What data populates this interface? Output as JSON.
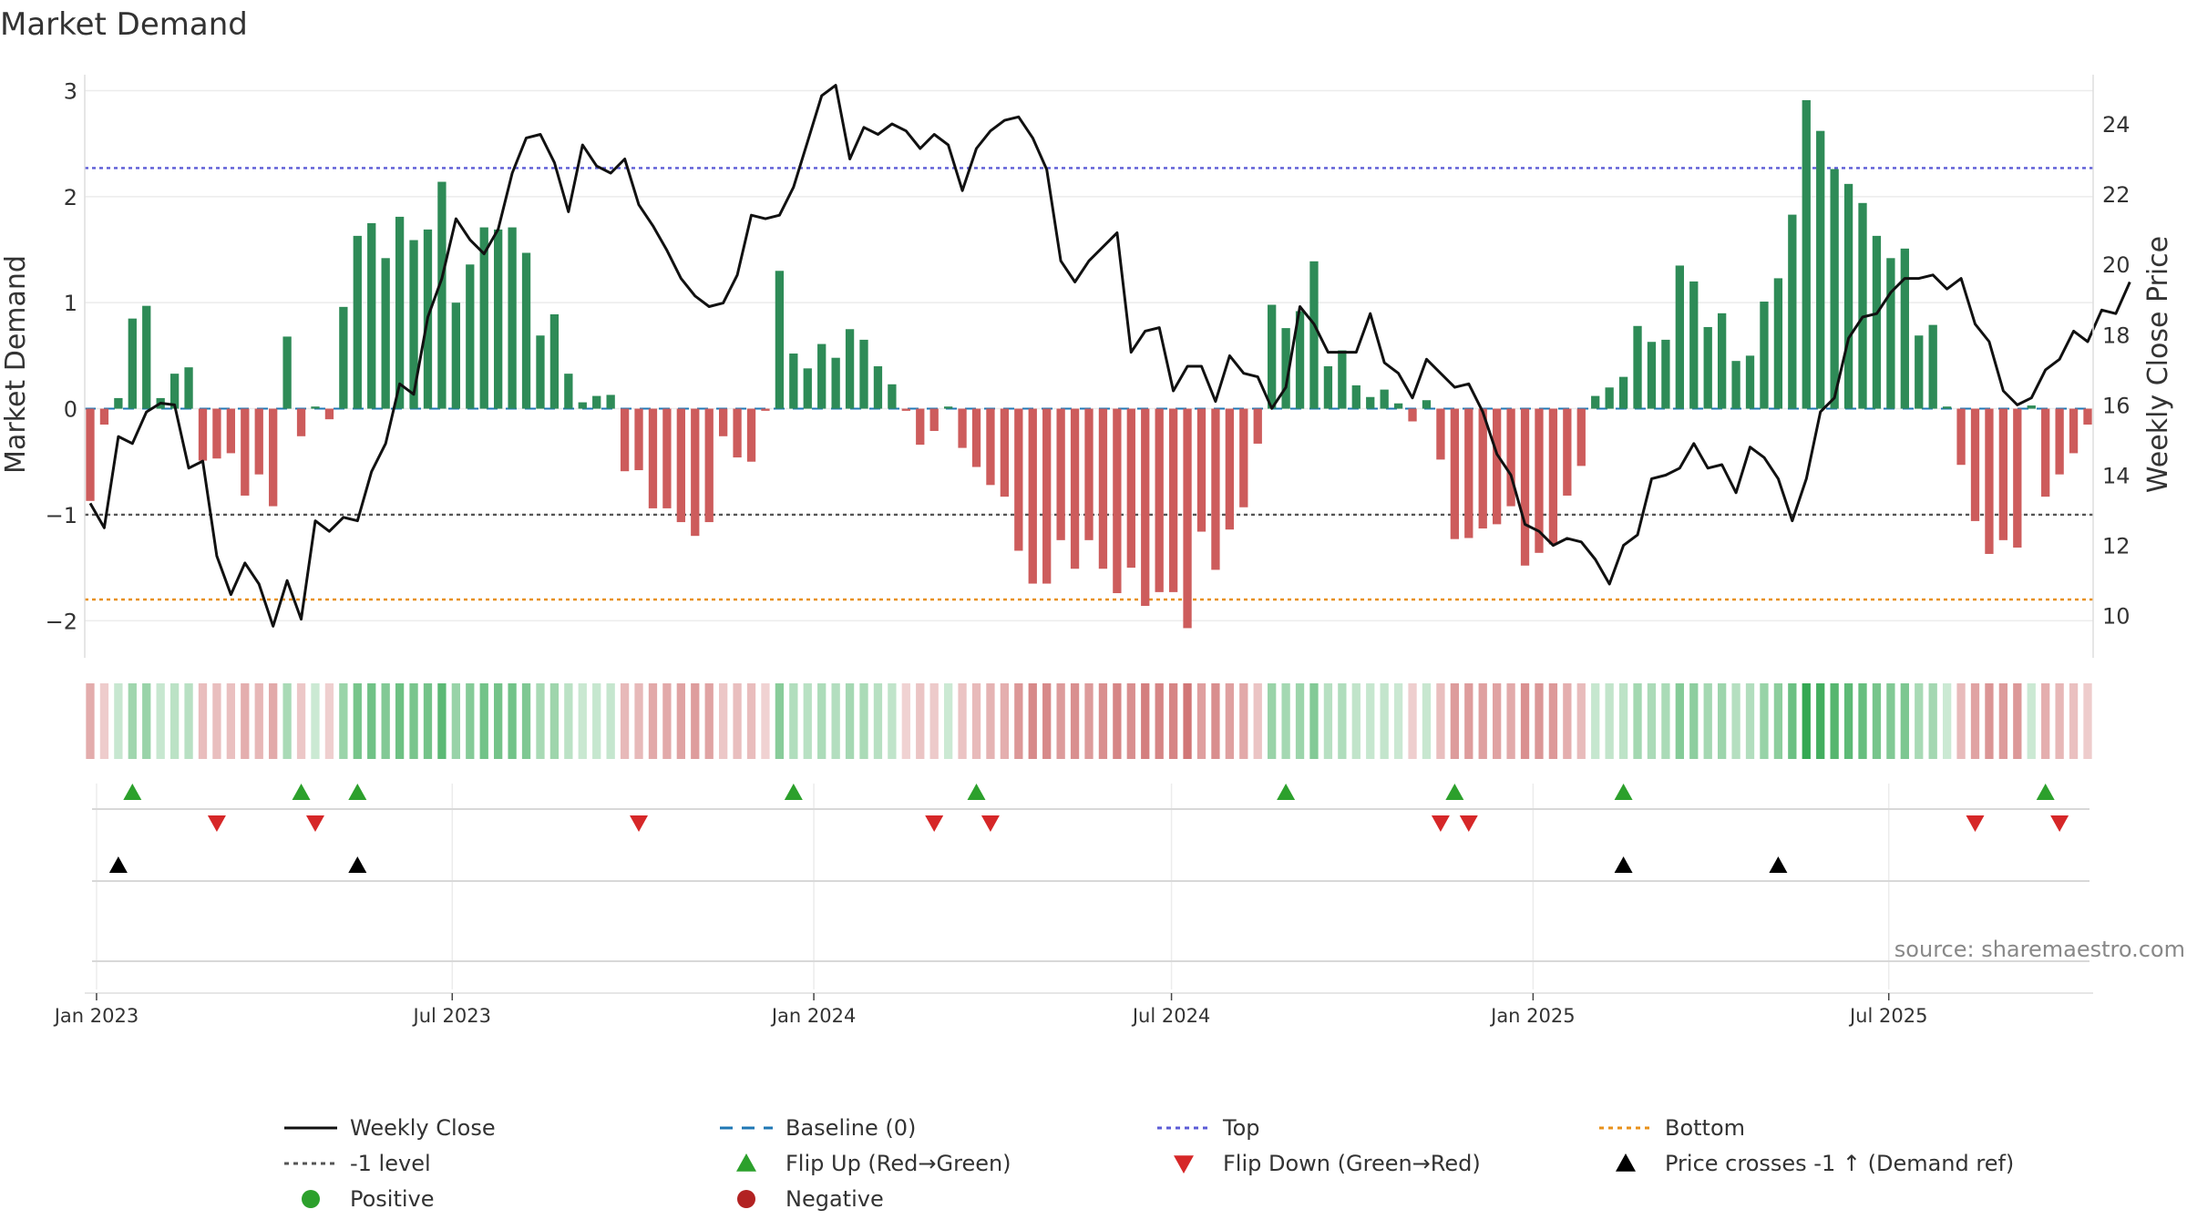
{
  "chart_data": {
    "type": "bar+line",
    "title": "Market Demand",
    "ylabel_left": "Market Demand",
    "ylabel_right": "Weekly Close Price",
    "ylim_left": [
      -2.35,
      3.15
    ],
    "ylim_right": [
      8.8,
      25.4
    ],
    "yticks_left": [
      -2,
      -1,
      0,
      1,
      2,
      3
    ],
    "yticks_right": [
      10,
      12,
      14,
      16,
      18,
      20,
      22,
      24
    ],
    "ytick_labels_left": [
      "−2",
      "−1",
      "0",
      "1",
      "2",
      "3"
    ],
    "x_start": "2022-12-26",
    "x_end": "2025-10-13",
    "xtick_dates": [
      "2023-01-01",
      "2023-07-01",
      "2024-01-01",
      "2024-07-01",
      "2025-01-01",
      "2025-07-01"
    ],
    "xtick_labels": [
      "Jan 2023",
      "Jul 2023",
      "Jan 2024",
      "Jul 2024",
      "Jan 2025",
      "Jul 2025"
    ],
    "reference_lines": {
      "top": 2.27,
      "bottom": -1.8,
      "minus_one": -1,
      "baseline": 0
    },
    "demand": [
      -0.87,
      -0.15,
      0.1,
      0.85,
      0.97,
      0.1,
      0.33,
      0.39,
      -0.49,
      -0.47,
      -0.42,
      -0.82,
      -0.62,
      -0.92,
      0.68,
      -0.26,
      0.02,
      -0.1,
      0.96,
      1.63,
      1.75,
      1.42,
      1.81,
      1.59,
      1.69,
      2.14,
      1.0,
      1.36,
      1.71,
      1.69,
      1.71,
      1.47,
      0.69,
      0.89,
      0.33,
      0.06,
      0.12,
      0.13,
      -0.59,
      -0.58,
      -0.94,
      -0.94,
      -1.07,
      -1.2,
      -1.07,
      -0.26,
      -0.46,
      -0.5,
      -0.02,
      1.3,
      0.52,
      0.38,
      0.61,
      0.48,
      0.75,
      0.65,
      0.4,
      0.23,
      -0.02,
      -0.34,
      -0.21,
      0.02,
      -0.37,
      -0.55,
      -0.72,
      -0.83,
      -1.34,
      -1.65,
      -1.65,
      -1.24,
      -1.51,
      -1.24,
      -1.51,
      -1.74,
      -1.5,
      -1.86,
      -1.73,
      -1.73,
      -2.07,
      -1.16,
      -1.52,
      -1.14,
      -0.93,
      -0.33,
      0.98,
      0.76,
      0.92,
      1.39,
      0.4,
      0.55,
      0.22,
      0.11,
      0.18,
      0.05,
      -0.12,
      0.08,
      -0.48,
      -1.23,
      -1.22,
      -1.13,
      -1.09,
      -0.92,
      -1.48,
      -1.36,
      -1.28,
      -0.82,
      -0.54,
      0.12,
      0.2,
      0.3,
      0.78,
      0.63,
      0.65,
      1.35,
      1.2,
      0.77,
      0.9,
      0.45,
      0.5,
      1.01,
      1.23,
      1.83,
      2.91,
      2.62,
      2.26,
      2.12,
      1.94,
      1.63,
      1.42,
      1.51,
      0.69,
      0.79,
      0.02,
      -0.53,
      -1.06,
      -1.37,
      -1.24,
      -1.31,
      0.03,
      -0.83,
      -0.62,
      -0.42,
      -0.15
    ],
    "close": [
      13.2,
      12.5,
      15.1,
      14.9,
      15.8,
      16.05,
      16.0,
      14.2,
      14.4,
      11.7,
      10.6,
      11.5,
      10.9,
      9.7,
      11.0,
      9.9,
      12.7,
      12.4,
      12.8,
      12.7,
      14.1,
      14.9,
      16.6,
      16.3,
      18.5,
      19.6,
      21.3,
      20.7,
      20.3,
      21.0,
      22.6,
      23.6,
      23.7,
      22.9,
      21.5,
      23.4,
      22.8,
      22.6,
      23.0,
      21.7,
      21.1,
      20.4,
      19.6,
      19.1,
      18.8,
      18.9,
      19.7,
      21.4,
      21.3,
      21.4,
      22.2,
      23.5,
      24.8,
      25.1,
      23.0,
      23.9,
      23.7,
      24.0,
      23.8,
      23.3,
      23.7,
      23.4,
      22.1,
      23.3,
      23.8,
      24.1,
      24.2,
      23.6,
      22.7,
      20.1,
      19.5,
      20.1,
      20.5,
      20.9,
      17.5,
      18.1,
      18.2,
      16.4,
      17.1,
      17.1,
      16.1,
      17.4,
      16.9,
      16.8,
      15.9,
      16.5,
      18.8,
      18.3,
      17.5,
      17.5,
      17.5,
      18.6,
      17.2,
      16.9,
      16.2,
      17.3,
      16.9,
      16.5,
      16.6,
      15.8,
      14.6,
      14.0,
      12.6,
      12.4,
      12.0,
      12.2,
      12.1,
      11.6,
      10.9,
      12.0,
      12.3,
      13.9,
      14.0,
      14.2,
      14.9,
      14.2,
      14.3,
      13.5,
      14.8,
      14.5,
      13.9,
      12.7,
      13.9,
      15.8,
      16.2,
      17.9,
      18.5,
      18.6,
      19.2,
      19.6,
      19.6,
      19.7,
      19.3,
      19.6,
      18.3,
      17.8,
      16.4,
      16.0,
      16.2,
      17.0,
      17.3,
      18.1,
      17.8,
      18.7,
      18.6,
      19.5
    ],
    "series": [
      {
        "name": "Weekly Close",
        "color": "#111111"
      },
      {
        "name": "Market Demand positive",
        "color": "#2e8b57"
      },
      {
        "name": "Market Demand negative",
        "color": "#cd5c5c"
      }
    ],
    "flip_up_indices": [
      3,
      15,
      19,
      50,
      63,
      85,
      97,
      109,
      139
    ],
    "flip_down_indices": [
      9,
      16,
      39,
      60,
      64,
      96,
      98,
      134,
      140
    ],
    "price_cross_indices": [
      2,
      19,
      109,
      120
    ],
    "legend": [
      {
        "label": "Weekly Close",
        "symbol": "line",
        "color": "#111111"
      },
      {
        "label": "Baseline (0)",
        "symbol": "dashed",
        "color": "#1f77b4"
      },
      {
        "label": "Top",
        "symbol": "dotted",
        "color": "#5b5bd6"
      },
      {
        "label": "Bottom",
        "symbol": "dotted",
        "color": "#e8901a"
      },
      {
        "label": "-1 level",
        "symbol": "dotted",
        "color": "#555555"
      },
      {
        "label": "Flip Up (Red→Green)",
        "symbol": "triangle-up",
        "color": "#2ca02c"
      },
      {
        "label": "Flip Down (Green→Red)",
        "symbol": "triangle-down",
        "color": "#d62728"
      },
      {
        "label": "Price crosses -1 ↑ (Demand ref)",
        "symbol": "triangle-up",
        "color": "#000000"
      },
      {
        "label": "Positive",
        "symbol": "circle",
        "color": "#2ca02c"
      },
      {
        "label": "Negative",
        "symbol": "circle",
        "color": "#b22222"
      }
    ],
    "legend_position": "bottom-center",
    "source_note": "source: sharemaestro.com"
  }
}
